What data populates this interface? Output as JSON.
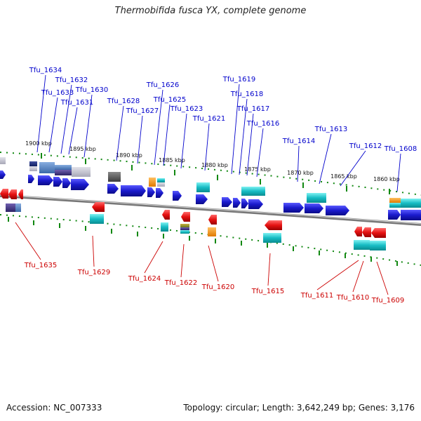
{
  "title": "Thermobifida fusca YX, complete genome",
  "footer": {
    "accession": "Accession: NC_007333",
    "topology": "Topology: circular; Length: 3,642,249 bp; Genes: 3,176"
  },
  "colors": {
    "forward_label": "#0000cc",
    "reverse_label": "#cc0000",
    "forward_gene": "#1a1acc",
    "reverse_gene": "#ee1111",
    "tick": "#118811",
    "backbone": "#888888"
  },
  "scale_labels": [
    "1900 kbp",
    "1895 kbp",
    "1890 kbp",
    "1885 kbp",
    "1880 kbp",
    "1875 kbp",
    "1870 kbp",
    "1865 kbp",
    "1860 kbp"
  ],
  "forward_genes": [
    "Tfu_1634",
    "Tfu_1633",
    "Tfu_1632",
    "Tfu_1631",
    "Tfu_1630",
    "Tfu_1628",
    "Tfu_1627",
    "Tfu_1626",
    "Tfu_1625",
    "Tfu_1623",
    "Tfu_1621",
    "Tfu_1619",
    "Tfu_1618",
    "Tfu_1617",
    "Tfu_1616",
    "Tfu_1614",
    "Tfu_1613",
    "Tfu_1612",
    "Tfu_1608"
  ],
  "reverse_genes": [
    "Tfu_1635",
    "Tfu_1629",
    "Tfu_1624",
    "Tfu_1622",
    "Tfu_1620",
    "Tfu_1615",
    "Tfu_1611",
    "Tfu_1610",
    "Tfu_1609"
  ]
}
